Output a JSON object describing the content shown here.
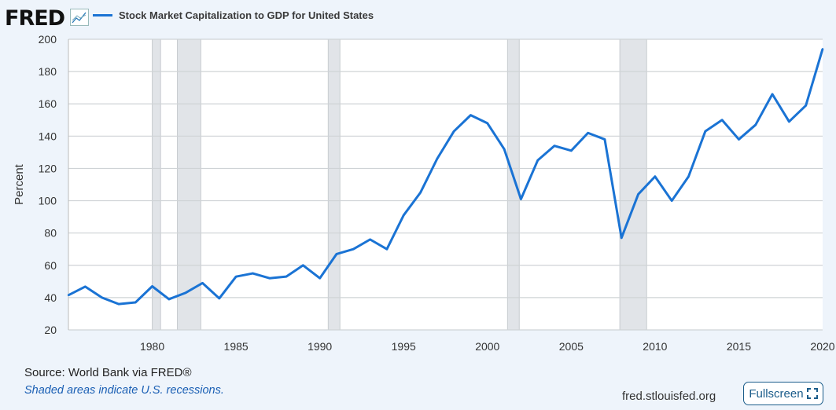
{
  "header": {
    "logo": "FRED",
    "legend_label": "Stock Market Capitalization to GDP for United States",
    "series_color": "#1a73d4"
  },
  "footer": {
    "source": "Source: World Bank via FRED®",
    "note": "Shaded areas indicate U.S. recessions.",
    "site": "fred.stlouisfed.org",
    "fullscreen_label": "Fullscreen"
  },
  "chart_data": {
    "type": "line",
    "ylabel": "Percent",
    "xlim": [
      1975,
      2020
    ],
    "ylim": [
      20,
      200
    ],
    "yticks": [
      20,
      40,
      60,
      80,
      100,
      120,
      140,
      160,
      180,
      200
    ],
    "xticks": [
      1980,
      1985,
      1990,
      1995,
      2000,
      2005,
      2010,
      2015,
      2020
    ],
    "grid": true,
    "recession_color": "#e1e4e8",
    "recessions": [
      [
        1980.0,
        1980.5
      ],
      [
        1981.5,
        1982.9
      ],
      [
        1990.5,
        1991.2
      ],
      [
        2001.2,
        2001.9
      ],
      [
        2007.9,
        2009.5
      ]
    ],
    "series": [
      {
        "name": "Stock Market Capitalization to GDP for United States",
        "x": [
          1975,
          1976,
          1977,
          1978,
          1979,
          1980,
          1981,
          1982,
          1983,
          1984,
          1985,
          1986,
          1987,
          1988,
          1989,
          1990,
          1991,
          1992,
          1993,
          1994,
          1995,
          1996,
          1997,
          1998,
          1999,
          2000,
          2001,
          2002,
          2003,
          2004,
          2005,
          2006,
          2007,
          2008,
          2009,
          2010,
          2011,
          2012,
          2013,
          2014,
          2015,
          2016,
          2017,
          2018,
          2019,
          2020
        ],
        "values": [
          41.5,
          46.8,
          40,
          36,
          37,
          47,
          39,
          43,
          49,
          39.5,
          53,
          55,
          52,
          53,
          60,
          52,
          67,
          70,
          76,
          70,
          91,
          105,
          126,
          143,
          153,
          148,
          132,
          101,
          125,
          134,
          131,
          142,
          138,
          77,
          104,
          115,
          100,
          115,
          143,
          150,
          138,
          147,
          166,
          149,
          159,
          194
        ]
      }
    ]
  }
}
